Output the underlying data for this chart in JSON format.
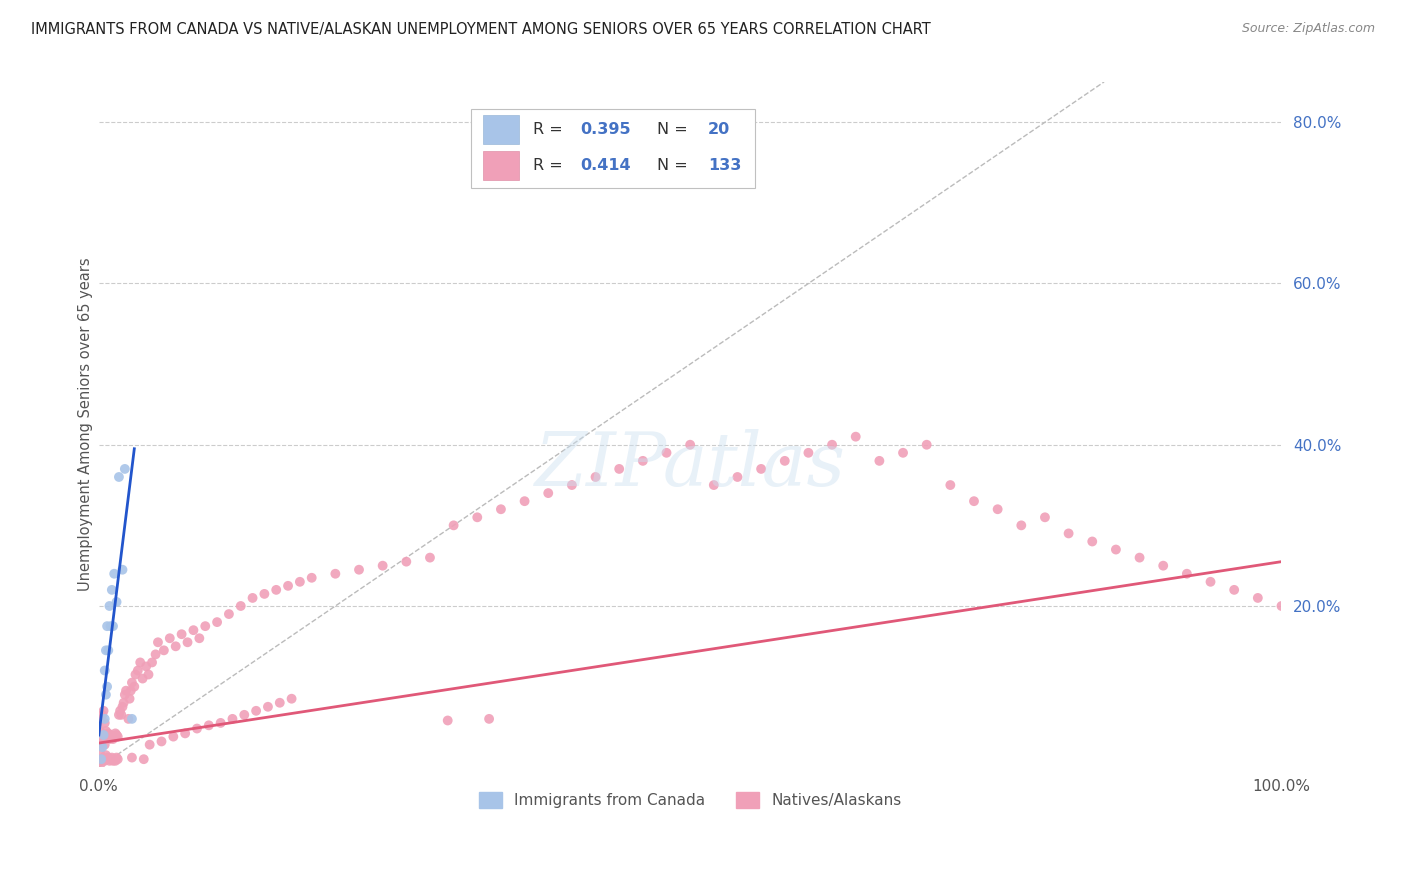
{
  "title": "IMMIGRANTS FROM CANADA VS NATIVE/ALASKAN UNEMPLOYMENT AMONG SENIORS OVER 65 YEARS CORRELATION CHART",
  "source": "Source: ZipAtlas.com",
  "ylabel": "Unemployment Among Seniors over 65 years",
  "xlim": [
    0.0,
    1.0
  ],
  "ylim": [
    0.0,
    0.85
  ],
  "blue_color": "#a8c4e8",
  "pink_color": "#f0a0b8",
  "blue_line_color": "#2255cc",
  "pink_line_color": "#e05878",
  "diagonal_color": "#bbbbbb",
  "grid_color": "#cccccc",
  "background_color": "#ffffff",
  "title_color": "#222222",
  "stat_color": "#4472c4",
  "legend_label1": "Immigrants from Canada",
  "legend_label2": "Natives/Alaskans",
  "R1": "0.395",
  "N1": "20",
  "R2": "0.414",
  "N2": "133",
  "marker_size": 50,
  "watermark": "ZIPatlas",
  "blue_line_x0": 0.0,
  "blue_line_y0": 0.04,
  "blue_line_x1": 0.03,
  "blue_line_y1": 0.395,
  "pink_line_x0": 0.0,
  "pink_line_y0": 0.03,
  "pink_line_x1": 1.0,
  "pink_line_y1": 0.255,
  "blue_x": [
    0.002,
    0.003,
    0.004,
    0.005,
    0.005,
    0.006,
    0.006,
    0.007,
    0.007,
    0.008,
    0.009,
    0.01,
    0.011,
    0.012,
    0.013,
    0.015,
    0.017,
    0.02,
    0.022,
    0.028
  ],
  "blue_y": [
    0.01,
    0.025,
    0.04,
    0.06,
    0.12,
    0.09,
    0.145,
    0.1,
    0.175,
    0.145,
    0.2,
    0.175,
    0.22,
    0.175,
    0.24,
    0.205,
    0.36,
    0.245,
    0.37,
    0.06
  ],
  "pink_x": [
    0.001,
    0.001,
    0.001,
    0.002,
    0.002,
    0.002,
    0.003,
    0.003,
    0.003,
    0.004,
    0.004,
    0.004,
    0.005,
    0.005,
    0.005,
    0.006,
    0.006,
    0.007,
    0.007,
    0.008,
    0.008,
    0.009,
    0.009,
    0.01,
    0.01,
    0.011,
    0.011,
    0.012,
    0.012,
    0.013,
    0.013,
    0.014,
    0.014,
    0.015,
    0.015,
    0.016,
    0.016,
    0.017,
    0.018,
    0.019,
    0.02,
    0.021,
    0.022,
    0.023,
    0.025,
    0.026,
    0.027,
    0.028,
    0.03,
    0.031,
    0.033,
    0.035,
    0.037,
    0.04,
    0.042,
    0.045,
    0.048,
    0.05,
    0.055,
    0.06,
    0.065,
    0.07,
    0.075,
    0.08,
    0.085,
    0.09,
    0.1,
    0.11,
    0.12,
    0.13,
    0.14,
    0.15,
    0.16,
    0.17,
    0.18,
    0.2,
    0.22,
    0.24,
    0.26,
    0.28,
    0.3,
    0.32,
    0.34,
    0.36,
    0.38,
    0.4,
    0.42,
    0.44,
    0.46,
    0.48,
    0.5,
    0.52,
    0.54,
    0.56,
    0.58,
    0.6,
    0.62,
    0.64,
    0.66,
    0.68,
    0.7,
    0.72,
    0.74,
    0.76,
    0.78,
    0.8,
    0.82,
    0.84,
    0.86,
    0.88,
    0.9,
    0.92,
    0.94,
    0.96,
    0.98,
    1.0,
    0.295,
    0.33,
    0.028,
    0.038,
    0.043,
    0.053,
    0.063,
    0.073,
    0.083,
    0.093,
    0.103,
    0.113,
    0.123,
    0.133,
    0.143,
    0.153,
    0.163
  ],
  "pink_y": [
    0.008,
    0.02,
    0.045,
    0.005,
    0.03,
    0.06,
    0.01,
    0.035,
    0.065,
    0.012,
    0.04,
    0.07,
    0.008,
    0.028,
    0.055,
    0.015,
    0.045,
    0.01,
    0.038,
    0.012,
    0.042,
    0.008,
    0.035,
    0.01,
    0.04,
    0.012,
    0.038,
    0.008,
    0.035,
    0.01,
    0.038,
    0.008,
    0.042,
    0.012,
    0.04,
    0.01,
    0.038,
    0.065,
    0.07,
    0.065,
    0.075,
    0.08,
    0.09,
    0.095,
    0.06,
    0.085,
    0.095,
    0.105,
    0.1,
    0.115,
    0.12,
    0.13,
    0.11,
    0.125,
    0.115,
    0.13,
    0.14,
    0.155,
    0.145,
    0.16,
    0.15,
    0.165,
    0.155,
    0.17,
    0.16,
    0.175,
    0.18,
    0.19,
    0.2,
    0.21,
    0.215,
    0.22,
    0.225,
    0.23,
    0.235,
    0.24,
    0.245,
    0.25,
    0.255,
    0.26,
    0.3,
    0.31,
    0.32,
    0.33,
    0.34,
    0.35,
    0.36,
    0.37,
    0.38,
    0.39,
    0.4,
    0.35,
    0.36,
    0.37,
    0.38,
    0.39,
    0.4,
    0.41,
    0.38,
    0.39,
    0.4,
    0.35,
    0.33,
    0.32,
    0.3,
    0.31,
    0.29,
    0.28,
    0.27,
    0.26,
    0.25,
    0.24,
    0.23,
    0.22,
    0.21,
    0.2,
    0.058,
    0.06,
    0.012,
    0.01,
    0.028,
    0.032,
    0.038,
    0.042,
    0.048,
    0.052,
    0.055,
    0.06,
    0.065,
    0.07,
    0.075,
    0.08,
    0.085
  ]
}
